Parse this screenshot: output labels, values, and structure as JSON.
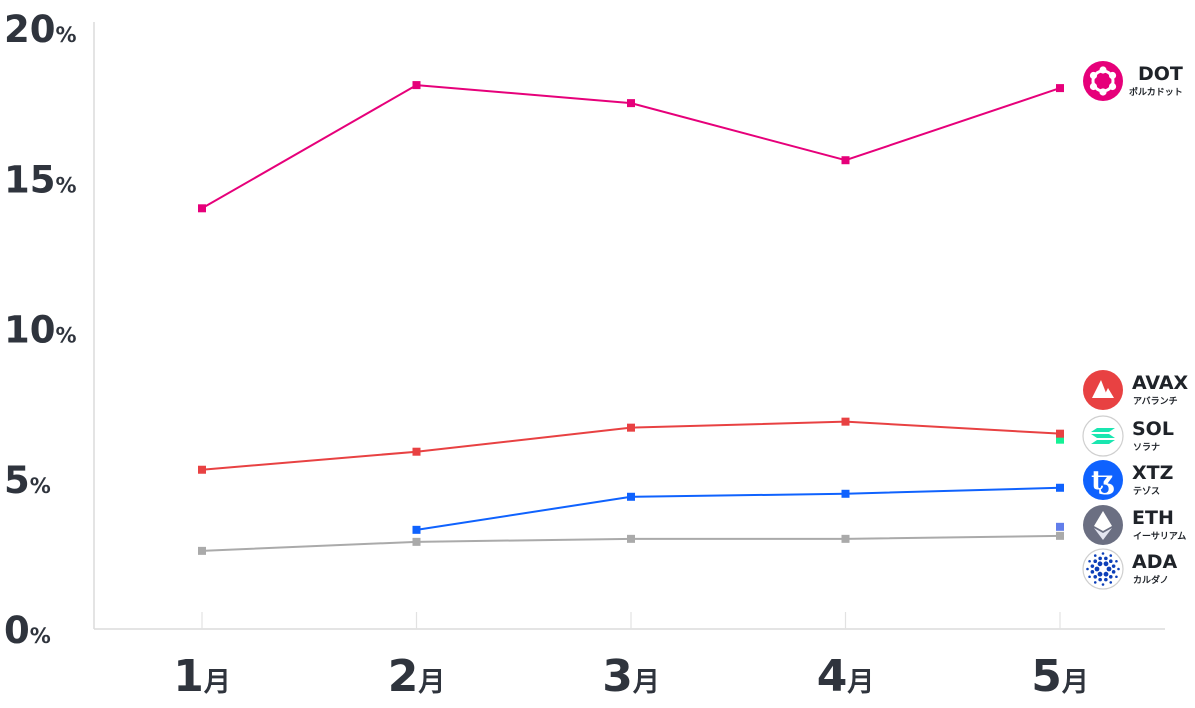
{
  "chart_data": {
    "type": "line",
    "categories": [
      "1月",
      "2月",
      "3月",
      "4月",
      "5月"
    ],
    "ylim": [
      0,
      20
    ],
    "y_ticks": [
      {
        "num": "0",
        "unit": "%"
      },
      {
        "num": "5",
        "unit": "%"
      },
      {
        "num": "10",
        "unit": "%"
      },
      {
        "num": "15",
        "unit": "%"
      },
      {
        "num": "20",
        "unit": "%"
      }
    ],
    "x_ticks": [
      {
        "num": "1",
        "unit": "月"
      },
      {
        "num": "2",
        "unit": "月"
      },
      {
        "num": "3",
        "unit": "月"
      },
      {
        "num": "4",
        "unit": "月"
      },
      {
        "num": "5",
        "unit": "月"
      }
    ],
    "grid": false,
    "legend_placement": "right",
    "series": [
      {
        "name": "DOT",
        "kana": "ポルカドット",
        "color": "#e6007a",
        "icon": "polkadot-icon",
        "values": [
          14.0,
          18.1,
          17.5,
          15.6,
          18.0
        ]
      },
      {
        "name": "AVAX",
        "kana": "アバランチ",
        "color": "#e84142",
        "icon": "avalanche-icon",
        "values": [
          5.3,
          5.9,
          6.7,
          6.9,
          6.5
        ]
      },
      {
        "name": "SOL",
        "kana": "ソラナ",
        "color": "#14f195",
        "icon": "solana-icon",
        "values": [
          null,
          null,
          null,
          null,
          6.3
        ]
      },
      {
        "name": "XTZ",
        "kana": "テゾス",
        "color": "#0f62fe",
        "icon": "tezos-icon",
        "values": [
          null,
          3.3,
          4.4,
          4.5,
          4.7
        ]
      },
      {
        "name": "ETH",
        "kana": "イーサリアム",
        "color": "#627eea",
        "icon": "ethereum-icon",
        "values": [
          null,
          null,
          null,
          null,
          3.4
        ]
      },
      {
        "name": "ADA",
        "kana": "カルダノ",
        "color": "#aaaaaa",
        "icon": "cardano-icon",
        "values": [
          2.6,
          2.9,
          3.0,
          3.0,
          3.1
        ]
      }
    ]
  }
}
